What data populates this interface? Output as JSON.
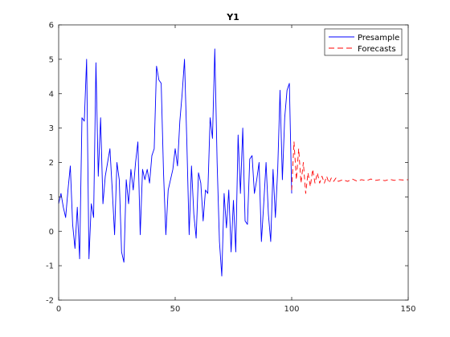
{
  "chart_data": {
    "type": "line",
    "title": "Y1",
    "xlabel": "",
    "ylabel": "",
    "xlim": [
      0,
      150
    ],
    "ylim": [
      -2,
      6
    ],
    "xticks": [
      0,
      50,
      100,
      150
    ],
    "yticks": [
      -2,
      -1,
      0,
      1,
      2,
      3,
      4,
      5,
      6
    ],
    "grid": false,
    "legend": {
      "placement": "top-right"
    },
    "series": [
      {
        "name": "Presample",
        "color": "#0000ff",
        "dash": "solid",
        "x": [
          0,
          1,
          2,
          3,
          4,
          5,
          6,
          7,
          8,
          9,
          10,
          11,
          12,
          13,
          14,
          15,
          16,
          17,
          18,
          19,
          20,
          21,
          22,
          23,
          24,
          25,
          26,
          27,
          28,
          29,
          30,
          31,
          32,
          33,
          34,
          35,
          36,
          37,
          38,
          39,
          40,
          41,
          42,
          43,
          44,
          45,
          46,
          47,
          48,
          49,
          50,
          51,
          52,
          53,
          54,
          55,
          56,
          57,
          58,
          59,
          60,
          61,
          62,
          63,
          64,
          65,
          66,
          67,
          68,
          69,
          70,
          71,
          72,
          73,
          74,
          75,
          76,
          77,
          78,
          79,
          80,
          81,
          82,
          83,
          84,
          85,
          86,
          87,
          88,
          89,
          90,
          91,
          92,
          93,
          94,
          95,
          96,
          97,
          98,
          99,
          100
        ],
        "y": [
          0.8,
          1.1,
          0.7,
          0.4,
          1.2,
          1.9,
          0.2,
          -0.5,
          0.7,
          -0.8,
          3.3,
          3.2,
          5.0,
          -0.8,
          0.8,
          0.4,
          4.9,
          1.6,
          3.3,
          0.8,
          1.6,
          2.0,
          2.4,
          1.2,
          -0.1,
          2.0,
          1.5,
          -0.6,
          -0.9,
          1.5,
          0.8,
          1.8,
          1.2,
          2.0,
          2.6,
          -0.1,
          1.8,
          1.5,
          1.8,
          1.4,
          2.2,
          2.4,
          4.8,
          4.4,
          4.3,
          1.7,
          -0.1,
          1.2,
          1.5,
          1.8,
          2.4,
          1.9,
          3.2,
          4.0,
          5.0,
          2.6,
          -0.1,
          1.9,
          0.5,
          -0.2,
          1.7,
          1.4,
          0.3,
          1.2,
          1.1,
          3.3,
          2.7,
          5.3,
          2.0,
          -0.3,
          -1.3,
          1.1,
          0.1,
          1.2,
          -0.6,
          0.9,
          -0.6,
          2.8,
          1.1,
          3.0,
          0.3,
          0.2,
          2.1,
          2.2,
          1.1,
          1.5,
          2.0,
          -0.3,
          0.8,
          2.0,
          0.5,
          -0.3,
          1.8,
          0.4,
          1.8,
          4.1,
          1.5,
          3.3,
          4.1,
          4.3,
          1.1
        ]
      },
      {
        "name": "Forecasts",
        "color": "#ff0000",
        "dash": "dashed",
        "x": [
          100,
          101,
          102,
          103,
          104,
          105,
          106,
          107,
          108,
          109,
          110,
          111,
          112,
          113,
          114,
          115,
          116,
          117,
          118,
          119,
          120,
          122,
          124,
          126,
          128,
          130,
          132,
          134,
          136,
          138,
          140,
          142,
          144,
          146,
          148,
          150
        ],
        "y": [
          1.2,
          2.6,
          1.5,
          2.4,
          1.4,
          2.0,
          1.1,
          1.7,
          1.3,
          1.8,
          1.4,
          1.7,
          1.4,
          1.6,
          1.4,
          1.6,
          1.4,
          1.55,
          1.45,
          1.55,
          1.45,
          1.5,
          1.45,
          1.52,
          1.46,
          1.5,
          1.47,
          1.52,
          1.48,
          1.5,
          1.47,
          1.51,
          1.48,
          1.5,
          1.49,
          1.5
        ]
      }
    ]
  }
}
